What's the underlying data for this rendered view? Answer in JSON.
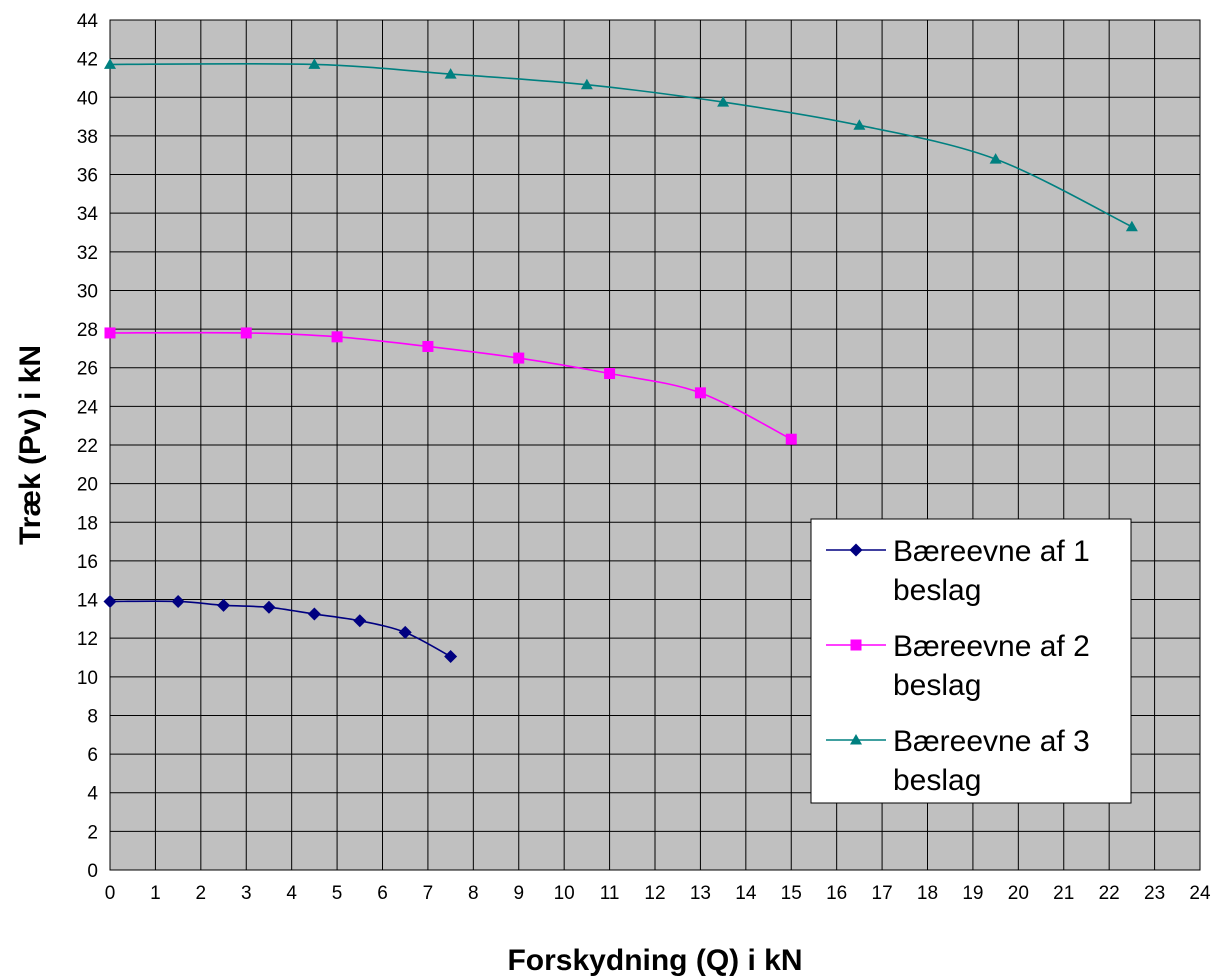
{
  "chart_data": {
    "type": "line",
    "title": "",
    "xlabel": "Forskydning (Q) i kN",
    "ylabel": "Træk (Pv) i kN",
    "xlim": [
      0,
      24
    ],
    "ylim": [
      0,
      44
    ],
    "xticks": [
      0,
      1,
      2,
      3,
      4,
      5,
      6,
      7,
      8,
      9,
      10,
      11,
      12,
      13,
      14,
      15,
      16,
      17,
      18,
      19,
      20,
      21,
      22,
      23,
      24
    ],
    "yticks": [
      0,
      2,
      4,
      6,
      8,
      10,
      12,
      14,
      16,
      18,
      20,
      22,
      24,
      26,
      28,
      30,
      32,
      34,
      36,
      38,
      40,
      42,
      44
    ],
    "grid": true,
    "plot_background": "#C0C0C0",
    "legend_position": "lower-right",
    "series": [
      {
        "name_line1": "Bæreevne af 1",
        "name_line2": "beslag",
        "color": "#000080",
        "marker": "diamond",
        "x": [
          0,
          1.5,
          2.5,
          3.5,
          4.5,
          5.5,
          6.5,
          7.5
        ],
        "y": [
          13.9,
          13.9,
          13.7,
          13.6,
          13.25,
          12.9,
          12.3,
          11.05
        ]
      },
      {
        "name_line1": "Bæreevne af 2",
        "name_line2": "beslag",
        "color": "#FF00FF",
        "marker": "square",
        "x": [
          0,
          3,
          5,
          7,
          9,
          11,
          13,
          15
        ],
        "y": [
          27.8,
          27.8,
          27.6,
          27.1,
          26.5,
          25.7,
          24.7,
          22.3
        ]
      },
      {
        "name_line1": "Bæreevne af 3",
        "name_line2": "beslag",
        "color": "#008080",
        "marker": "triangle",
        "x": [
          0,
          4.5,
          7.5,
          10.5,
          13.5,
          16.5,
          19.5,
          22.5
        ],
        "y": [
          41.7,
          41.7,
          41.2,
          40.65,
          39.75,
          38.55,
          36.8,
          33.3
        ]
      }
    ]
  }
}
